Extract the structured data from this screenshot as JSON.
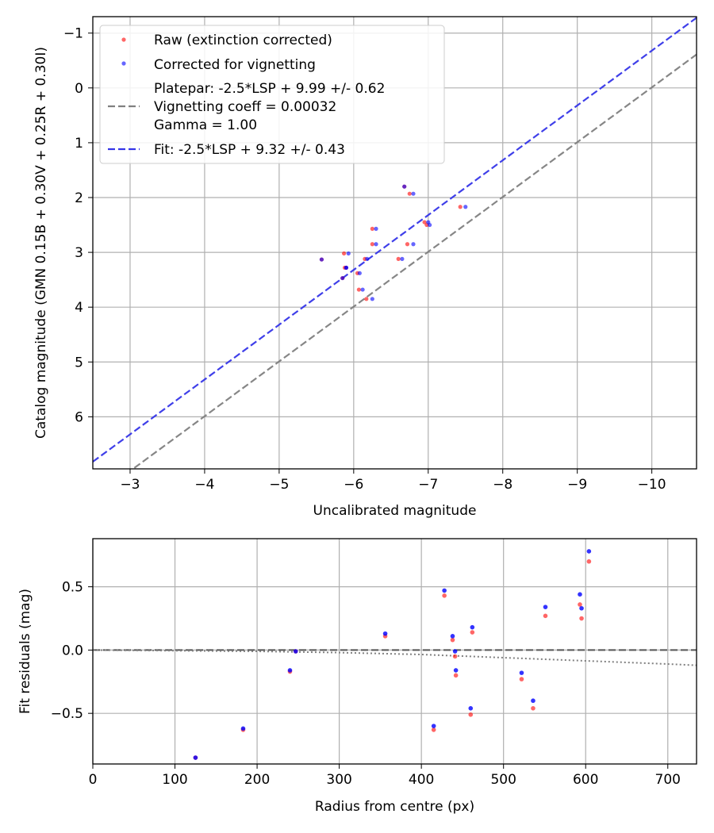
{
  "chart_data": [
    {
      "type": "scatter",
      "xlabel": "Uncalibrated magnitude",
      "ylabel": "Catalog magnitude (GMN 0.15B + 0.30V + 0.25R + 0.30I)",
      "xlim": [
        -2.5,
        -10.6
      ],
      "ylim": [
        6.95,
        -1.3
      ],
      "xticks": [
        -3,
        -4,
        -5,
        -6,
        -7,
        -8,
        -9,
        -10
      ],
      "xtick_labels": [
        "−3",
        "−4",
        "−5",
        "−6",
        "−7",
        "−8",
        "−9",
        "−10"
      ],
      "yticks": [
        -1,
        0,
        1,
        2,
        3,
        4,
        5,
        6
      ],
      "ytick_labels": [
        "−1",
        "0",
        "1",
        "2",
        "3",
        "4",
        "5",
        "6"
      ],
      "grid": true,
      "legend_position": "top-left",
      "series": [
        {
          "name": "Raw (extinction corrected)",
          "color": "#ff0000",
          "marker": "dot",
          "points": [
            [
              -5.57,
              3.13
            ],
            [
              -5.85,
              3.47
            ],
            [
              -5.87,
              3.02
            ],
            [
              -5.88,
              3.28
            ],
            [
              -5.9,
              3.28
            ],
            [
              -6.05,
              3.38
            ],
            [
              -6.07,
              3.68
            ],
            [
              -6.15,
              3.12
            ],
            [
              -6.17,
              3.85
            ],
            [
              -6.25,
              2.57
            ],
            [
              -6.25,
              2.85
            ],
            [
              -6.6,
              3.12
            ],
            [
              -6.68,
              1.8
            ],
            [
              -6.72,
              2.85
            ],
            [
              -6.75,
              1.93
            ],
            [
              -6.95,
              2.45
            ],
            [
              -6.98,
              2.5
            ],
            [
              -7.43,
              2.17
            ]
          ]
        },
        {
          "name": "Corrected for vignetting",
          "color": "#0000ff",
          "marker": "dot",
          "points": [
            [
              -5.57,
              3.13
            ],
            [
              -5.85,
              3.47
            ],
            [
              -5.93,
              3.02
            ],
            [
              -5.9,
              3.28
            ],
            [
              -5.9,
              3.28
            ],
            [
              -6.08,
              3.38
            ],
            [
              -6.12,
              3.68
            ],
            [
              -6.18,
              3.12
            ],
            [
              -6.25,
              3.85
            ],
            [
              -6.3,
              2.57
            ],
            [
              -6.3,
              2.85
            ],
            [
              -6.65,
              3.12
            ],
            [
              -6.68,
              1.8
            ],
            [
              -6.8,
              2.85
            ],
            [
              -6.8,
              1.93
            ],
            [
              -7.0,
              2.45
            ],
            [
              -7.02,
              2.5
            ],
            [
              -7.5,
              2.17
            ]
          ]
        },
        {
          "name": "Platepar: -2.5*LSP + 9.99 +/- 0.62\nVignetting coeff = 0.00032\nGamma = 1.00",
          "color": "#808080",
          "marker": "dashed-line",
          "line": {
            "slope": 1,
            "offset": 9.99
          }
        },
        {
          "name": "Fit: -2.5*LSP + 9.32 +/- 0.43",
          "color": "#3535e8",
          "marker": "dashed-line",
          "line": {
            "slope": 1,
            "offset": 9.32
          }
        }
      ]
    },
    {
      "type": "scatter",
      "xlabel": "Radius from centre (px)",
      "ylabel": "Fit residuals (mag)",
      "xlim": [
        0,
        735
      ],
      "ylim": [
        -0.9,
        0.88
      ],
      "xticks": [
        0,
        100,
        200,
        300,
        400,
        500,
        600,
        700
      ],
      "xtick_labels": [
        "0",
        "100",
        "200",
        "300",
        "400",
        "500",
        "600",
        "700"
      ],
      "yticks": [
        -0.5,
        0.0,
        0.5
      ],
      "ytick_labels": [
        "−0.5",
        "0.0",
        "0.5"
      ],
      "grid": true,
      "zero_line": {
        "y": 0.0,
        "color": "#555555",
        "style": "dashed"
      },
      "vignetting_curve": {
        "color": "#808080",
        "style": "dotted",
        "points": [
          [
            0,
            0.0
          ],
          [
            200,
            -0.01
          ],
          [
            300,
            -0.02
          ],
          [
            400,
            -0.035
          ],
          [
            500,
            -0.06
          ],
          [
            600,
            -0.085
          ],
          [
            700,
            -0.11
          ],
          [
            735,
            -0.12
          ]
        ]
      },
      "series": [
        {
          "name": "Raw",
          "color": "#ff0000",
          "points": [
            [
              125,
              -0.85
            ],
            [
              183,
              -0.63
            ],
            [
              240,
              -0.17
            ],
            [
              247,
              -0.01
            ],
            [
              356,
              0.11
            ],
            [
              415,
              -0.63
            ],
            [
              428,
              0.43
            ],
            [
              438,
              0.08
            ],
            [
              441,
              -0.05
            ],
            [
              442,
              -0.2
            ],
            [
              460,
              -0.51
            ],
            [
              462,
              0.14
            ],
            [
              522,
              -0.23
            ],
            [
              536,
              -0.46
            ],
            [
              551,
              0.27
            ],
            [
              593,
              0.36
            ],
            [
              595,
              0.25
            ],
            [
              604,
              0.7
            ]
          ]
        },
        {
          "name": "Corrected",
          "color": "#0000ff",
          "points": [
            [
              125,
              -0.85
            ],
            [
              183,
              -0.62
            ],
            [
              240,
              -0.16
            ],
            [
              247,
              -0.01
            ],
            [
              356,
              0.13
            ],
            [
              415,
              -0.6
            ],
            [
              428,
              0.47
            ],
            [
              438,
              0.11
            ],
            [
              441,
              -0.01
            ],
            [
              442,
              -0.16
            ],
            [
              460,
              -0.46
            ],
            [
              462,
              0.18
            ],
            [
              522,
              -0.18
            ],
            [
              536,
              -0.4
            ],
            [
              551,
              0.34
            ],
            [
              593,
              0.44
            ],
            [
              595,
              0.33
            ],
            [
              604,
              0.78
            ]
          ]
        }
      ]
    }
  ]
}
